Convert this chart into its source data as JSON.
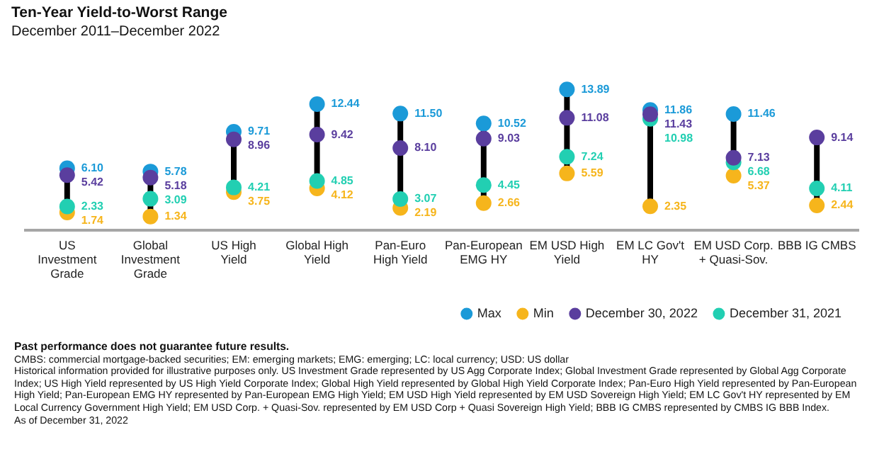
{
  "chart_data": {
    "type": "scatter",
    "title": "Ten-Year Yield-to-Worst Range",
    "subtitle": "December 2011–December 2022",
    "categories": [
      "US Investment Grade",
      "Global Investment Grade",
      "US High Yield",
      "Global High Yield",
      "Pan-Euro High Yield",
      "Pan-European EMG HY",
      "EM USD High Yield",
      "EM LC Gov't HY",
      "EM USD Corp. + Quasi-Sov.",
      "BBB IG CMBS"
    ],
    "tick_labels": "x",
    "legend": "bottom right",
    "marker": "circle",
    "series": [
      {
        "name": "Max",
        "color": "#1b9ad8",
        "values": [
          6.1,
          5.78,
          9.71,
          12.44,
          11.5,
          10.52,
          13.89,
          11.86,
          11.46,
          null
        ],
        "value_labels": [
          "6.10",
          "5.78",
          "9.71",
          "12.44",
          "11.50",
          "10.52",
          "13.89",
          "11.86",
          "11.46",
          null
        ]
      },
      {
        "name": "Min",
        "color": "#f6b51c",
        "values": [
          1.74,
          1.34,
          3.75,
          4.12,
          2.19,
          2.66,
          5.59,
          2.35,
          5.37,
          2.44
        ],
        "value_labels": [
          "1.74",
          "1.34",
          "3.75",
          "4.12",
          "2.19",
          "2.66",
          "5.59",
          "2.35",
          "5.37",
          "2.44"
        ]
      },
      {
        "name": "December 30, 2022",
        "color": "#5a3e9e",
        "values": [
          5.42,
          5.18,
          8.96,
          9.42,
          8.1,
          9.03,
          11.08,
          11.43,
          7.13,
          9.14
        ],
        "value_labels": [
          "5.42",
          "5.18",
          "8.96",
          "9.42",
          "8.10",
          "9.03",
          "11.08",
          "11.43",
          "7.13",
          "9.14"
        ]
      },
      {
        "name": "December 31, 2021",
        "color": "#22cfb2",
        "values": [
          2.33,
          3.09,
          4.21,
          4.85,
          3.07,
          4.45,
          7.24,
          10.98,
          6.68,
          4.11
        ],
        "value_labels": [
          "2.33",
          "3.09",
          "4.21",
          "4.85",
          "3.07",
          "4.45",
          "7.24",
          "10.98",
          "6.68",
          "4.11"
        ]
      }
    ],
    "annotations": [
      "Past performance does not guarantee future results.",
      "CMBS: commercial mortgage-backed securities; EM: emerging markets; EMG: emerging; LC: local currency; USD: US dollar",
      "Historical information provided for illustrative purposes only. US Investment Grade represented by US Agg Corporate Index; Global Investment Grade represented by Global Agg Corporate Index; US High Yield represented by US High Yield Corporate Index; Global High Yield represented by Global High Yield Corporate Index; Pan-Euro High Yield represented by Pan-European High Yield; Pan-European EMG HY represented by Pan-European EMG High Yield; EM USD High Yield represented by EM USD Sovereign High Yield; EM LC Gov't HY represented by EM Local Currency Government High Yield; EM USD Corp. + Quasi-Sov. represented by EM USD Corp + Quasi Sovereign High Yield; BBB IG CMBS represented by CMBS IG BBB Index.",
      "As of December 31, 2022"
    ]
  }
}
